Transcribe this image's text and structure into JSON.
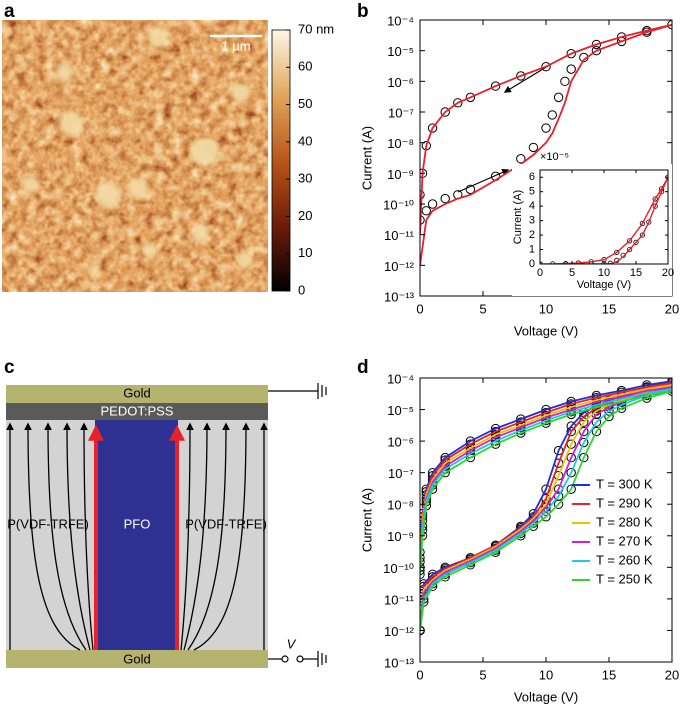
{
  "panel_labels": [
    "a",
    "b",
    "c",
    "d"
  ],
  "afm": {
    "scale_bar": "1 µm"
  },
  "diagram": {
    "top_electrode": "Gold",
    "top_layer": "PEDOT:PSS",
    "left_layer": "P(VDF-TRFE)",
    "center": "PFO",
    "right_layer": "P(VDF-TRFE)",
    "bottom_electrode": "Gold",
    "voltage": "V"
  },
  "chart_data": [
    {
      "type": "colorbar",
      "ylim": [
        0,
        70
      ],
      "yticks": [
        0,
        10,
        20,
        30,
        40,
        50,
        60,
        {
          "value": 70,
          "label": "70 nm"
        }
      ],
      "colors": [
        "#000000",
        "#6e1c08",
        "#b8561a",
        "#e2a65a",
        "#fdf6e6"
      ]
    },
    {
      "type": "line",
      "xlabel": "Voltage (V)",
      "ylabel": "Current (A)",
      "yscale": "log",
      "xlim": [
        0,
        20
      ],
      "xticks": [
        0,
        5,
        10,
        15,
        20
      ],
      "ylim": [
        1e-13,
        0.0001
      ],
      "yticks": [
        {
          "value": 1e-13,
          "label": "10⁻¹³"
        },
        {
          "value": 1e-12,
          "label": "10⁻¹²"
        },
        {
          "value": 1e-11,
          "label": "10⁻¹¹"
        },
        {
          "value": 1e-10,
          "label": "10⁻¹⁰"
        },
        {
          "value": 1e-09,
          "label": "10⁻⁹"
        },
        {
          "value": 1e-08,
          "label": "10⁻⁸"
        },
        {
          "value": 1e-07,
          "label": "10⁻⁷"
        },
        {
          "value": 1e-06,
          "label": "10⁻⁶"
        },
        {
          "value": 1e-05,
          "label": "10⁻⁵"
        },
        {
          "value": 0.0001,
          "label": "10⁻⁴"
        }
      ],
      "x": [
        0,
        0.5,
        1,
        2,
        3,
        4,
        6,
        8,
        9,
        10,
        10.5,
        11,
        11.5,
        12,
        13,
        14,
        16,
        18,
        20,
        18,
        16,
        14,
        12,
        10,
        8,
        6,
        4,
        3,
        2,
        1,
        0.5,
        0.2,
        0
      ],
      "series": [
        {
          "color": "#000000",
          "marker": "circle",
          "line": false,
          "values": [
            3e-11,
            6e-11,
            1e-10,
            1.5e-10,
            2e-10,
            3e-10,
            8e-10,
            3e-09,
            7e-09,
            3e-08,
            8e-08,
            3e-07,
            1e-06,
            2.5e-06,
            6e-06,
            1e-05,
            2e-05,
            4e-05,
            7e-05,
            4.5e-05,
            2.8e-05,
            1.6e-05,
            8e-06,
            3e-06,
            1.5e-06,
            7e-07,
            3e-07,
            2e-07,
            1e-07,
            3e-08,
            8e-09,
            1e-09,
            2e-10
          ]
        },
        {
          "color": "#e8202a",
          "marker": "none",
          "line": true,
          "values": [
            1e-12,
            3e-11,
            6e-11,
            1e-10,
            1.5e-10,
            2e-10,
            6e-10,
            2e-09,
            4e-09,
            1e-08,
            2e-08,
            6e-08,
            2e-07,
            1e-06,
            5e-06,
            1e-05,
            2e-05,
            4e-05,
            7e-05,
            4.5e-05,
            2.8e-05,
            1.6e-05,
            8e-06,
            3e-06,
            1.5e-06,
            7e-07,
            3e-07,
            2e-07,
            1e-07,
            3e-08,
            8e-09,
            1e-09,
            1e-11
          ]
        }
      ]
    },
    {
      "type": "line",
      "xlabel": "Voltage (V)",
      "ylabel": "Current (A)",
      "y_multiplier": "×10⁻⁵",
      "xlim": [
        0,
        20
      ],
      "xticks": [
        0,
        5,
        10,
        15,
        20
      ],
      "ylim": [
        0,
        6.5
      ],
      "yticks": [
        0,
        1,
        2,
        3,
        4,
        5,
        6
      ],
      "x": [
        0,
        4,
        8,
        10,
        11,
        12,
        13,
        14,
        15,
        16,
        17,
        18,
        19,
        20,
        19,
        18,
        16,
        14,
        12,
        10,
        8,
        6,
        4,
        2,
        0
      ],
      "series": [
        {
          "color": "#000000",
          "marker": "circle",
          "line": false,
          "values": [
            0,
            0,
            0,
            0.01,
            0.05,
            0.25,
            0.6,
            1.0,
            1.5,
            2.0,
            2.9,
            4.0,
            5.0,
            6.0,
            5.2,
            4.5,
            2.8,
            1.6,
            0.8,
            0.3,
            0.15,
            0.07,
            0.03,
            0.01,
            0
          ]
        },
        {
          "color": "#e8202a",
          "marker": "none",
          "line": true,
          "values": [
            0,
            0,
            0,
            0,
            0.02,
            0.15,
            0.5,
            1.0,
            1.5,
            2.0,
            2.9,
            4.0,
            5.0,
            6.0,
            5.2,
            4.5,
            2.8,
            1.6,
            0.8,
            0.3,
            0.15,
            0.07,
            0.03,
            0.01,
            0
          ]
        }
      ]
    },
    {
      "type": "line",
      "xlabel": "Voltage (V)",
      "ylabel": "Current (A)",
      "yscale": "log",
      "legend": "center right",
      "markers": "circle",
      "marker_color": "#000000",
      "xlim": [
        0,
        20
      ],
      "xticks": [
        0,
        5,
        10,
        15,
        20
      ],
      "ylim": [
        1e-13,
        0.0001
      ],
      "yticks": [
        {
          "value": 1e-13,
          "label": "10⁻¹³"
        },
        {
          "value": 1e-12,
          "label": "10⁻¹²"
        },
        {
          "value": 1e-11,
          "label": "10⁻¹¹"
        },
        {
          "value": 1e-10,
          "label": "10⁻¹⁰"
        },
        {
          "value": 1e-09,
          "label": "10⁻⁹"
        },
        {
          "value": 1e-08,
          "label": "10⁻⁸"
        },
        {
          "value": 1e-07,
          "label": "10⁻⁷"
        },
        {
          "value": 1e-06,
          "label": "10⁻⁶"
        },
        {
          "value": 1e-05,
          "label": "10⁻⁵"
        },
        {
          "value": 0.0001,
          "label": "10⁻⁴"
        }
      ],
      "x": [
        0,
        0.3,
        1,
        2,
        4,
        6,
        8,
        9,
        10,
        11,
        12,
        13,
        14,
        15,
        16,
        18,
        20,
        18,
        16,
        14,
        12,
        10,
        8,
        6,
        4,
        2,
        1,
        0.5,
        0.2,
        0
      ],
      "series": [
        {
          "name": "T = 300 K",
          "color": "#1f2fd6",
          "values": [
            1e-12,
            3e-11,
            6e-11,
            1e-10,
            2e-10,
            5e-10,
            2e-09,
            5e-09,
            3e-08,
            5e-07,
            3e-06,
            8e-06,
            1.3e-05,
            2e-05,
            2.7e-05,
            5e-05,
            8e-05,
            6e-05,
            4e-05,
            2.8e-05,
            1.8e-05,
            1e-05,
            5e-06,
            2.5e-06,
            1e-06,
            3e-07,
            1e-07,
            3e-08,
            5e-09,
            3e-10
          ]
        },
        {
          "name": "T = 290 K",
          "color": "#e8202a",
          "values": [
            1e-12,
            2.5e-11,
            5e-11,
            9e-11,
            2e-10,
            5e-10,
            1.8e-09,
            4e-09,
            1.5e-08,
            2e-07,
            2e-06,
            6e-06,
            1.1e-05,
            1.7e-05,
            2.3e-05,
            4.3e-05,
            7e-05,
            5.2e-05,
            3.5e-05,
            2.4e-05,
            1.5e-05,
            8e-06,
            4e-06,
            2e-06,
            8e-07,
            2.5e-07,
            8e-08,
            2.5e-08,
            4e-09,
            2e-10
          ]
        },
        {
          "name": "T = 280 K",
          "color": "#e8c400",
          "values": [
            1e-12,
            2e-11,
            4e-11,
            8e-11,
            1.8e-10,
            4.5e-10,
            1.6e-09,
            3.5e-09,
            1e-08,
            8e-08,
            8e-07,
            4e-06,
            9e-06,
            1.4e-05,
            2e-05,
            3.7e-05,
            6e-05,
            4.5e-05,
            3e-05,
            2e-05,
            1.2e-05,
            6.5e-06,
            3.2e-06,
            1.6e-06,
            6e-07,
            2e-07,
            6e-08,
            2e-08,
            3e-09,
            1.5e-10
          ]
        },
        {
          "name": "T = 270 K",
          "color": "#d21fd2",
          "values": [
            1e-12,
            1.5e-11,
            3.5e-11,
            7e-11,
            1.6e-10,
            4e-10,
            1.4e-09,
            3e-09,
            8e-09,
            3e-08,
            3e-07,
            2e-06,
            7e-06,
            1.2e-05,
            1.7e-05,
            3.2e-05,
            5.2e-05,
            3.9e-05,
            2.6e-05,
            1.7e-05,
            1e-05,
            5.5e-06,
            2.7e-06,
            1.3e-06,
            5e-07,
            1.6e-07,
            5e-08,
            1.5e-08,
            2e-09,
            1e-10
          ]
        },
        {
          "name": "T = 260 K",
          "color": "#1fc8e8",
          "values": [
            1e-12,
            1e-11,
            3e-11,
            6e-11,
            1.4e-10,
            3.5e-10,
            1.2e-09,
            2.5e-09,
            6e-09,
            1.8e-08,
            1e-07,
            9e-07,
            4e-06,
            9e-06,
            1.4e-05,
            2.8e-05,
            4.5e-05,
            3.3e-05,
            2.2e-05,
            1.4e-05,
            8.5e-06,
            4.5e-06,
            2.2e-06,
            1e-06,
            4e-07,
            1.3e-07,
            4e-08,
            1.2e-08,
            1.5e-09,
            8e-11
          ]
        },
        {
          "name": "T = 250 K",
          "color": "#2fd62f",
          "values": [
            1e-12,
            8e-12,
            2.5e-11,
            5e-11,
            1.2e-10,
            3e-10,
            1e-09,
            2e-09,
            4e-09,
            1e-08,
            3e-08,
            3e-07,
            2e-06,
            6e-06,
            1.1e-05,
            2.3e-05,
            3.8e-05,
            2.8e-05,
            1.8e-05,
            1.2e-05,
            7e-06,
            3.7e-06,
            1.8e-06,
            8e-07,
            3e-07,
            1e-07,
            3e-08,
            9e-09,
            1e-09,
            6e-11
          ]
        }
      ]
    }
  ]
}
